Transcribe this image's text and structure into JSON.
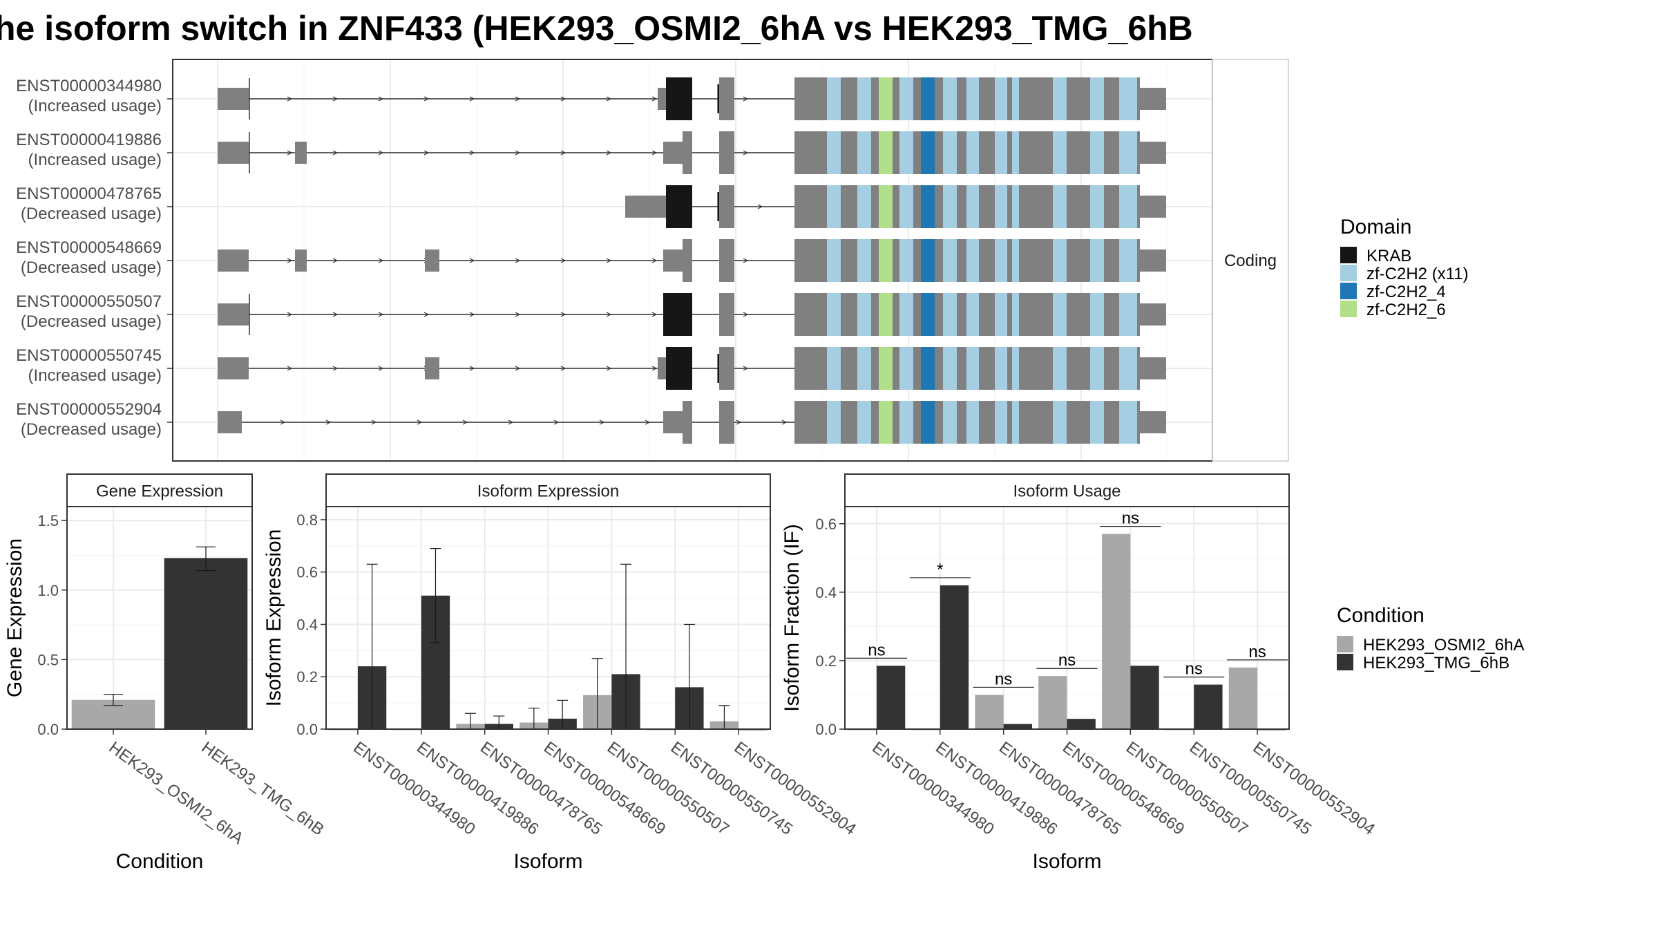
{
  "title": "he isoform switch in ZNF433 (HEK293_OSMI2_6hA vs HEK293_TMG_6hB",
  "colors": {
    "exon": "#808080",
    "krab": "#161616",
    "zf_c2h2_x11": "#a6cee3",
    "zf_c2h2_4": "#1f78b4",
    "zf_c2h2_6": "#b2df8a",
    "condition_a": "#a8a8a8",
    "condition_b": "#333333"
  },
  "structure": {
    "strip_label": "Coding",
    "transcripts": [
      {
        "id": "ENST00000344980",
        "usage": "(Increased usage)"
      },
      {
        "id": "ENST00000419886",
        "usage": "(Increased usage)"
      },
      {
        "id": "ENST00000478765",
        "usage": "(Decreased usage)"
      },
      {
        "id": "ENST00000548669",
        "usage": "(Decreased usage)"
      },
      {
        "id": "ENST00000550507",
        "usage": "(Decreased usage)"
      },
      {
        "id": "ENST00000550745",
        "usage": "(Increased usage)"
      },
      {
        "id": "ENST00000552904",
        "usage": "(Decreased usage)"
      }
    ]
  },
  "legends": {
    "domain": {
      "title": "Domain",
      "items": [
        {
          "label": "KRAB",
          "color": "#161616"
        },
        {
          "label": "zf-C2H2 (x11)",
          "color": "#a6cee3"
        },
        {
          "label": "zf-C2H2_4",
          "color": "#1f78b4"
        },
        {
          "label": "zf-C2H2_6",
          "color": "#b2df8a"
        }
      ]
    },
    "condition": {
      "title": "Condition",
      "items": [
        {
          "label": "HEK293_OSMI2_6hA",
          "color": "#a8a8a8"
        },
        {
          "label": "HEK293_TMG_6hB",
          "color": "#333333"
        }
      ]
    }
  },
  "chart_data": [
    {
      "type": "bar",
      "title": "Gene Expression",
      "xlabel": "Condition",
      "ylabel": "Gene Expression",
      "ylim": [
        0,
        1.6
      ],
      "yticks": [
        "0.0",
        "0.5",
        "1.0",
        "1.5"
      ],
      "categories": [
        "HEK293_OSMI2_6hA",
        "HEK293_TMG_6hB"
      ],
      "values": [
        0.21,
        1.23
      ],
      "error_low": [
        0.17,
        1.14
      ],
      "error_high": [
        0.25,
        1.31
      ]
    },
    {
      "type": "bar",
      "title": "Isoform Expression",
      "xlabel": "Isoform",
      "ylabel": "Isoform Expression",
      "ylim": [
        0,
        0.85
      ],
      "yticks": [
        "0.0",
        "0.2",
        "0.4",
        "0.6",
        "0.8"
      ],
      "categories": [
        "ENST00000344980",
        "ENST00000419886",
        "ENST00000478765",
        "ENST00000548669",
        "ENST00000550507",
        "ENST00000550745",
        "ENST00000552904"
      ],
      "series": [
        {
          "name": "HEK293_OSMI2_6hA",
          "values": [
            0.0,
            0.0,
            0.02,
            0.025,
            0.13,
            0.0,
            0.03
          ],
          "error_low": [
            0.0,
            0.0,
            0.0,
            0.0,
            0.0,
            0.0,
            0.0
          ],
          "error_high": [
            0.0,
            0.0,
            0.06,
            0.08,
            0.27,
            0.0,
            0.09
          ]
        },
        {
          "name": "HEK293_TMG_6hB",
          "values": [
            0.24,
            0.51,
            0.02,
            0.04,
            0.21,
            0.16,
            0.0
          ],
          "error_low": [
            0.0,
            0.33,
            0.0,
            0.0,
            0.0,
            0.0,
            0.0
          ],
          "error_high": [
            0.63,
            0.69,
            0.05,
            0.11,
            0.63,
            0.4,
            0.0
          ]
        }
      ]
    },
    {
      "type": "bar",
      "title": "Isoform Usage",
      "xlabel": "Isoform",
      "ylabel": "Isoform Fraction (IF)",
      "ylim": [
        0,
        0.65
      ],
      "yticks": [
        "0.0",
        "0.2",
        "0.4",
        "0.6"
      ],
      "categories": [
        "ENST00000344980",
        "ENST00000419886",
        "ENST00000478765",
        "ENST00000548669",
        "ENST00000550507",
        "ENST00000550745",
        "ENST00000552904"
      ],
      "series": [
        {
          "name": "HEK293_OSMI2_6hA",
          "values": [
            0.0,
            0.0,
            0.1,
            0.155,
            0.57,
            0.0,
            0.18
          ]
        },
        {
          "name": "HEK293_TMG_6hB",
          "values": [
            0.185,
            0.42,
            0.015,
            0.03,
            0.185,
            0.13,
            0.0
          ]
        }
      ],
      "significance": [
        "ns",
        "*",
        "ns",
        "ns",
        "ns",
        "ns",
        "ns"
      ]
    }
  ]
}
